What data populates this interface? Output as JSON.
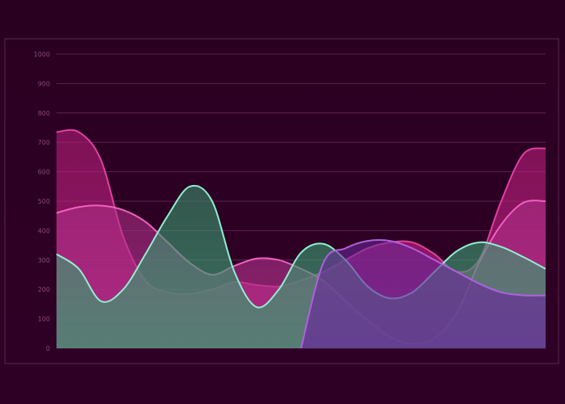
{
  "chart_data": {
    "type": "area",
    "title": "",
    "xlabel": "",
    "ylabel": "",
    "ylim": [
      0,
      1000
    ],
    "yticks": [
      0,
      100,
      200,
      300,
      400,
      500,
      600,
      700,
      800,
      900,
      1000
    ],
    "x": [
      0,
      1,
      2,
      3,
      4,
      5,
      6,
      7,
      8,
      9,
      10,
      11,
      12,
      13,
      14,
      15,
      16,
      17,
      18,
      19,
      20,
      21,
      22
    ],
    "grid": true,
    "legend": "none",
    "background_color": "#2a0020",
    "series": [
      {
        "color": "#e040a0",
        "fill": "#c02080",
        "values": [
          735,
          735,
          640,
          380,
          230,
          190,
          185,
          200,
          225,
          215,
          210,
          230,
          260,
          300,
          340,
          360,
          360,
          320,
          260,
          300,
          500,
          660,
          680
        ]
      },
      {
        "color": "#f060c0",
        "fill": "#b0308a",
        "values": [
          460,
          480,
          485,
          470,
          430,
          360,
          290,
          250,
          280,
          305,
          300,
          270,
          230,
          160,
          95,
          40,
          15,
          35,
          120,
          290,
          420,
          495,
          500
        ]
      },
      {
        "color": "#90f0d0",
        "fill": "#3a9a70",
        "values": [
          320,
          270,
          160,
          200,
          320,
          450,
          550,
          500,
          260,
          140,
          200,
          325,
          355,
          300,
          210,
          170,
          190,
          260,
          330,
          360,
          345,
          310,
          270
        ]
      },
      {
        "color": "#b060e0",
        "fill": "#6a2a9a",
        "values": [
          0,
          0,
          0,
          0,
          0,
          0,
          0,
          0,
          0,
          0,
          0,
          0,
          290,
          340,
          365,
          365,
          340,
          300,
          260,
          220,
          190,
          180,
          180
        ]
      }
    ]
  }
}
